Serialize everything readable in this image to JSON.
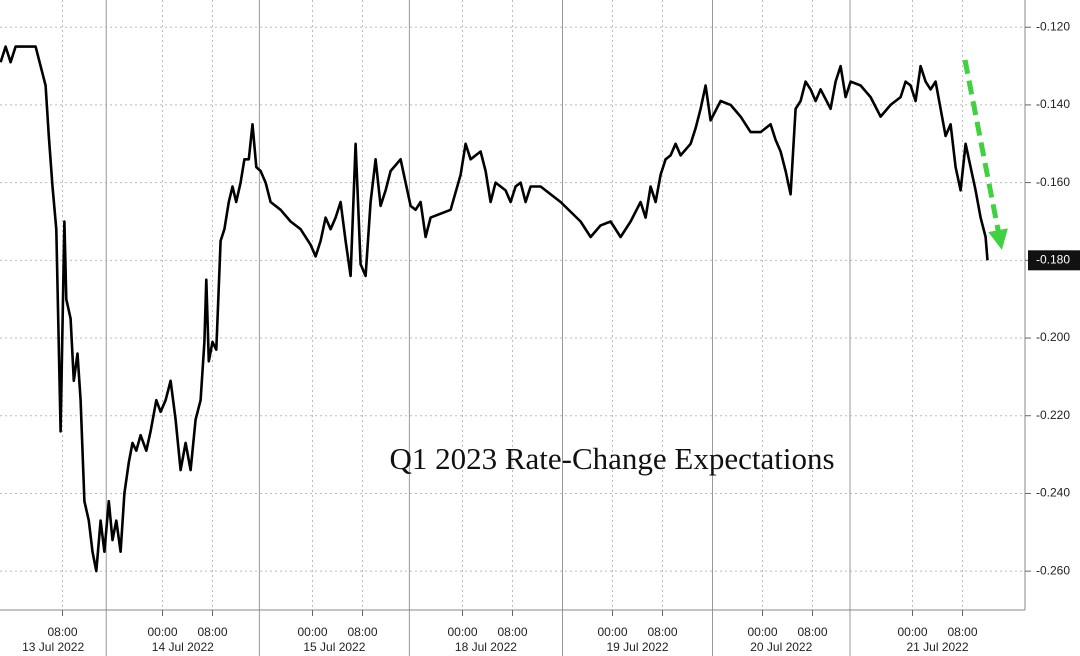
{
  "chart_data": {
    "type": "line",
    "annotation": "Q1 2023 Rate-Change Expectations",
    "xlim": [
      -2,
      162
    ],
    "ylim": [
      -0.27,
      -0.113
    ],
    "yticks": [
      {
        "value": -0.12,
        "label": "-0.120"
      },
      {
        "value": -0.14,
        "label": "-0.140"
      },
      {
        "value": -0.16,
        "label": "-0.160"
      },
      {
        "value": -0.18,
        "label": "-0.180"
      },
      {
        "value": -0.2,
        "label": "-0.200"
      },
      {
        "value": -0.22,
        "label": "-0.220"
      },
      {
        "value": -0.24,
        "label": "-0.240"
      },
      {
        "value": -0.26,
        "label": "-0.260"
      }
    ],
    "xticks": [
      {
        "value": 8,
        "label": "08:00"
      },
      {
        "value": 24,
        "label": "00:00"
      },
      {
        "value": 32,
        "label": "08:00"
      },
      {
        "value": 48,
        "label": "00:00"
      },
      {
        "value": 56,
        "label": "08:00"
      },
      {
        "value": 72,
        "label": "00:00"
      },
      {
        "value": 80,
        "label": "08:00"
      },
      {
        "value": 96,
        "label": "00:00"
      },
      {
        "value": 104,
        "label": "08:00"
      },
      {
        "value": 120,
        "label": "00:00"
      },
      {
        "value": 128,
        "label": "08:00"
      },
      {
        "value": 144,
        "label": "00:00"
      },
      {
        "value": 152,
        "label": "08:00"
      }
    ],
    "day_breaks": [
      15,
      39.5,
      63.5,
      88,
      112,
      134
    ],
    "day_labels": [
      "13 Jul 2022",
      "14 Jul 2022",
      "15 Jul 2022",
      "18 Jul 2022",
      "19 Jul 2022",
      "20 Jul 2022",
      "21 Jul 2022"
    ],
    "grid": true,
    "last_value": {
      "value": -0.18,
      "label": "-0.180"
    },
    "series": [
      {
        "color": "#000000",
        "x": [
          -1.9,
          -1.1,
          -0.3,
          0.5,
          3.7,
          4.5,
          5.3,
          5.8,
          6.4,
          7.0,
          7.7,
          8.3,
          8.6,
          9.3,
          9.8,
          10.4,
          10.9,
          11.5,
          12.2,
          12.8,
          13.4,
          14.1,
          14.7,
          15.4,
          16.0,
          16.6,
          17.3,
          17.9,
          18.6,
          19.2,
          19.8,
          20.5,
          21.4,
          22.1,
          23.0,
          23.7,
          24.5,
          25.3,
          26.1,
          26.9,
          27.7,
          28.5,
          29.3,
          30.1,
          30.7,
          31.0,
          31.4,
          32.0,
          32.6,
          33.3,
          33.9,
          34.6,
          35.2,
          35.8,
          36.5,
          37.1,
          37.8,
          38.4,
          39.0,
          39.7,
          40.5,
          41.3,
          42.9,
          44.5,
          46.1,
          47.7,
          48.5,
          49.3,
          50.1,
          50.9,
          51.7,
          52.5,
          53.3,
          54.1,
          54.9,
          55.7,
          56.5,
          57.3,
          58.1,
          58.9,
          59.7,
          60.5,
          62.1,
          62.9,
          63.7,
          64.5,
          65.3,
          66.1,
          66.9,
          70.1,
          71.7,
          72.5,
          73.3,
          74.9,
          75.7,
          76.5,
          77.3,
          78.9,
          79.7,
          80.5,
          81.3,
          82.1,
          82.9,
          84.5,
          87.7,
          90.9,
          92.5,
          94.1,
          95.7,
          97.3,
          98.9,
          100.5,
          101.3,
          102.1,
          102.9,
          103.7,
          104.5,
          105.3,
          106.1,
          106.9,
          108.5,
          109.3,
          110.1,
          110.9,
          111.7,
          113.3,
          114.9,
          116.5,
          118.1,
          119.7,
          121.3,
          122.1,
          122.9,
          123.7,
          124.5,
          125.3,
          126.1,
          126.9,
          127.7,
          128.5,
          129.3,
          130.9,
          131.7,
          132.5,
          133.3,
          134.1,
          135.7,
          137.3,
          138.9,
          140.5,
          142.1,
          142.9,
          143.7,
          144.5,
          145.3,
          146.1,
          146.9,
          147.7,
          148.5,
          149.3,
          150.1,
          150.9,
          151.7,
          152.5,
          153.3,
          154.1,
          154.9,
          155.7,
          156.0
        ],
        "values": [
          -0.129,
          -0.125,
          -0.129,
          -0.125,
          -0.125,
          -0.13,
          -0.135,
          -0.148,
          -0.161,
          -0.172,
          -0.224,
          -0.17,
          -0.19,
          -0.195,
          -0.211,
          -0.204,
          -0.216,
          -0.242,
          -0.247,
          -0.255,
          -0.26,
          -0.247,
          -0.255,
          -0.242,
          -0.252,
          -0.247,
          -0.255,
          -0.24,
          -0.232,
          -0.227,
          -0.229,
          -0.225,
          -0.229,
          -0.224,
          -0.216,
          -0.219,
          -0.216,
          -0.211,
          -0.221,
          -0.234,
          -0.227,
          -0.234,
          -0.221,
          -0.216,
          -0.201,
          -0.185,
          -0.206,
          -0.201,
          -0.203,
          -0.175,
          -0.172,
          -0.165,
          -0.161,
          -0.165,
          -0.16,
          -0.154,
          -0.154,
          -0.145,
          -0.156,
          -0.157,
          -0.16,
          -0.165,
          -0.167,
          -0.17,
          -0.172,
          -0.176,
          -0.179,
          -0.175,
          -0.169,
          -0.172,
          -0.169,
          -0.165,
          -0.175,
          -0.184,
          -0.15,
          -0.181,
          -0.184,
          -0.165,
          -0.154,
          -0.166,
          -0.162,
          -0.157,
          -0.154,
          -0.16,
          -0.166,
          -0.167,
          -0.165,
          -0.174,
          -0.169,
          -0.167,
          -0.158,
          -0.15,
          -0.154,
          -0.152,
          -0.157,
          -0.165,
          -0.16,
          -0.162,
          -0.165,
          -0.161,
          -0.16,
          -0.165,
          -0.161,
          -0.161,
          -0.165,
          -0.17,
          -0.174,
          -0.171,
          -0.17,
          -0.174,
          -0.17,
          -0.165,
          -0.169,
          -0.161,
          -0.165,
          -0.158,
          -0.154,
          -0.153,
          -0.15,
          -0.153,
          -0.15,
          -0.146,
          -0.141,
          -0.135,
          -0.144,
          -0.139,
          -0.14,
          -0.143,
          -0.147,
          -0.147,
          -0.145,
          -0.149,
          -0.152,
          -0.157,
          -0.163,
          -0.141,
          -0.139,
          -0.134,
          -0.136,
          -0.139,
          -0.136,
          -0.141,
          -0.134,
          -0.13,
          -0.138,
          -0.134,
          -0.135,
          -0.138,
          -0.143,
          -0.14,
          -0.138,
          -0.134,
          -0.135,
          -0.139,
          -0.13,
          -0.134,
          -0.136,
          -0.134,
          -0.141,
          -0.148,
          -0.145,
          -0.156,
          -0.162,
          -0.15,
          -0.156,
          -0.162,
          -0.169,
          -0.174,
          -0.18
        ]
      }
    ]
  }
}
